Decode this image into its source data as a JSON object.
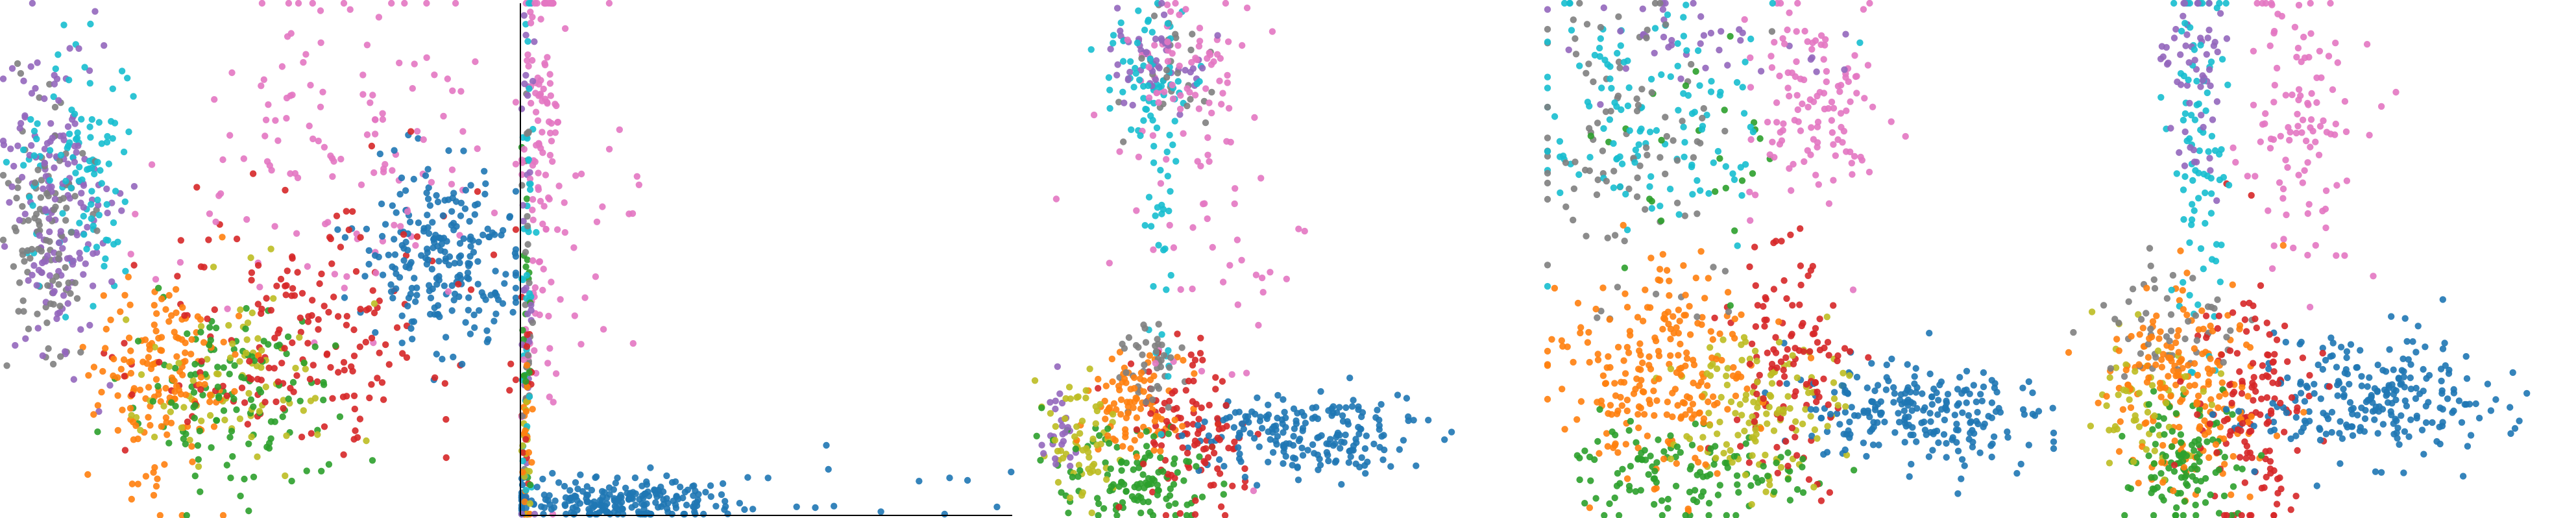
{
  "figure": {
    "background": "#ffffff",
    "panel_count": 5,
    "point_alpha": 0.9
  },
  "palette": {
    "c0": "#1f77b4",
    "c1": "#ff7f0e",
    "c2": "#2ca02c",
    "c3": "#d62728",
    "c4": "#9467bd",
    "c5": "#e377c2",
    "c6": "#7f7f7f",
    "c7": "#bcbd22",
    "c8": "#17becf"
  },
  "chart_data": [
    {
      "type": "scatter",
      "title": "",
      "xlabel": "",
      "ylabel": "",
      "show_axes": false,
      "grid": false,
      "xlim": [
        0,
        100
      ],
      "ylim": [
        0,
        100
      ],
      "clusters": [
        {
          "color": "c0",
          "n": 230,
          "center": [
            86,
            50
          ],
          "spread": [
            8,
            9
          ]
        },
        {
          "color": "c4",
          "n": 170,
          "center": [
            10,
            62
          ],
          "spread": [
            5,
            16
          ]
        },
        {
          "color": "c8",
          "n": 110,
          "center": [
            15,
            68
          ],
          "spread": [
            5,
            12
          ]
        },
        {
          "color": "c6",
          "n": 110,
          "center": [
            9,
            55
          ],
          "spread": [
            4,
            12
          ]
        },
        {
          "color": "c5",
          "n": 130,
          "center": [
            64,
            70
          ],
          "spread": [
            16,
            16
          ]
        },
        {
          "color": "c1",
          "n": 160,
          "center": [
            31,
            28
          ],
          "spread": [
            7,
            10
          ]
        },
        {
          "color": "c2",
          "n": 130,
          "center": [
            43,
            23
          ],
          "spread": [
            11,
            10
          ]
        },
        {
          "color": "c7",
          "n": 80,
          "center": [
            45,
            28
          ],
          "spread": [
            11,
            9
          ]
        },
        {
          "color": "c3",
          "n": 190,
          "center": [
            59,
            36
          ],
          "spread": [
            17,
            12
          ]
        }
      ]
    },
    {
      "type": "scatter",
      "title": "",
      "xlabel": "",
      "ylabel": "",
      "show_axes": true,
      "axes": "left,bottom",
      "grid": false,
      "xlim": [
        0,
        100
      ],
      "ylim": [
        0,
        100
      ],
      "clusters": [
        {
          "color": "c5",
          "n": 110,
          "center": [
            4,
            70
          ],
          "spread": [
            2,
            25
          ]
        },
        {
          "color": "c5",
          "n": 25,
          "center": [
            12,
            60
          ],
          "spread": [
            8,
            25
          ]
        },
        {
          "color": "c8",
          "n": 40,
          "center": [
            1,
            50
          ],
          "spread": [
            0.6,
            30
          ]
        },
        {
          "color": "c4",
          "n": 30,
          "center": [
            1,
            55
          ],
          "spread": [
            0.6,
            28
          ]
        },
        {
          "color": "c6",
          "n": 25,
          "center": [
            1,
            40
          ],
          "spread": [
            0.6,
            25
          ]
        },
        {
          "color": "c2",
          "n": 20,
          "center": [
            1,
            30
          ],
          "spread": [
            0.6,
            20
          ]
        },
        {
          "color": "c3",
          "n": 20,
          "center": [
            1,
            25
          ],
          "spread": [
            0.6,
            20
          ]
        },
        {
          "color": "c1",
          "n": 25,
          "center": [
            1,
            15
          ],
          "spread": [
            0.6,
            12
          ]
        },
        {
          "color": "c7",
          "n": 15,
          "center": [
            1,
            12
          ],
          "spread": [
            0.6,
            10
          ]
        },
        {
          "color": "c0",
          "n": 230,
          "center": [
            18,
            2.5
          ],
          "spread": [
            13,
            2.2
          ]
        },
        {
          "color": "c0",
          "n": 12,
          "center": [
            60,
            4
          ],
          "spread": [
            20,
            3
          ]
        }
      ]
    },
    {
      "type": "scatter",
      "title": "",
      "xlabel": "",
      "ylabel": "",
      "show_axes": false,
      "grid": false,
      "xlim": [
        0,
        100
      ],
      "ylim": [
        0,
        100
      ],
      "clusters": [
        {
          "color": "c5",
          "n": 60,
          "center": [
            30,
            88
          ],
          "spread": [
            6,
            6
          ]
        },
        {
          "color": "c8",
          "n": 60,
          "center": [
            23,
            85
          ],
          "spread": [
            5,
            7
          ]
        },
        {
          "color": "c4",
          "n": 50,
          "center": [
            24,
            90
          ],
          "spread": [
            5,
            5
          ]
        },
        {
          "color": "c6",
          "n": 30,
          "center": [
            25,
            87
          ],
          "spread": [
            5,
            6
          ]
        },
        {
          "color": "c5",
          "n": 55,
          "center": [
            35,
            55
          ],
          "spread": [
            10,
            18
          ]
        },
        {
          "color": "c8",
          "n": 35,
          "center": [
            25,
            55
          ],
          "spread": [
            2,
            14
          ]
        },
        {
          "color": "c6",
          "n": 40,
          "center": [
            22,
            30
          ],
          "spread": [
            3,
            5
          ]
        },
        {
          "color": "c1",
          "n": 90,
          "center": [
            20,
            22
          ],
          "spread": [
            5,
            5
          ]
        },
        {
          "color": "c3",
          "n": 110,
          "center": [
            30,
            15
          ],
          "spread": [
            6,
            9
          ]
        },
        {
          "color": "c2",
          "n": 120,
          "center": [
            20,
            8
          ],
          "spread": [
            7,
            5
          ]
        },
        {
          "color": "c7",
          "n": 60,
          "center": [
            10,
            14
          ],
          "spread": [
            4,
            7
          ]
        },
        {
          "color": "c4",
          "n": 25,
          "center": [
            5,
            17
          ],
          "spread": [
            2,
            5
          ]
        },
        {
          "color": "c0",
          "n": 200,
          "center": [
            52,
            16
          ],
          "spread": [
            12,
            4
          ]
        }
      ]
    },
    {
      "type": "scatter",
      "title": "",
      "xlabel": "",
      "ylabel": "",
      "show_axes": false,
      "grid": false,
      "xlim": [
        0,
        100
      ],
      "ylim": [
        0,
        100
      ],
      "clusters": [
        {
          "color": "c5",
          "n": 120,
          "center": [
            52,
            82
          ],
          "spread": [
            7,
            12
          ]
        },
        {
          "color": "c8",
          "n": 130,
          "center": [
            20,
            78
          ],
          "spread": [
            12,
            12
          ]
        },
        {
          "color": "c6",
          "n": 100,
          "center": [
            15,
            70
          ],
          "spread": [
            10,
            15
          ]
        },
        {
          "color": "c4",
          "n": 40,
          "center": [
            25,
            92
          ],
          "spread": [
            15,
            5
          ]
        },
        {
          "color": "c2",
          "n": 25,
          "center": [
            33,
            72
          ],
          "spread": [
            8,
            12
          ]
        },
        {
          "color": "c1",
          "n": 230,
          "center": [
            22,
            28
          ],
          "spread": [
            10,
            10
          ]
        },
        {
          "color": "c7",
          "n": 130,
          "center": [
            42,
            22
          ],
          "spread": [
            8,
            8
          ]
        },
        {
          "color": "c2",
          "n": 120,
          "center": [
            25,
            8
          ],
          "spread": [
            12,
            5
          ]
        },
        {
          "color": "c3",
          "n": 120,
          "center": [
            48,
            30
          ],
          "spread": [
            6,
            12
          ]
        },
        {
          "color": "c0",
          "n": 230,
          "center": [
            74,
            20
          ],
          "spread": [
            12,
            5
          ]
        }
      ]
    },
    {
      "type": "scatter",
      "title": "",
      "xlabel": "",
      "ylabel": "",
      "show_axes": false,
      "grid": false,
      "xlim": [
        0,
        100
      ],
      "ylim": [
        0,
        100
      ],
      "clusters": [
        {
          "color": "c8",
          "n": 90,
          "center": [
            27,
            70
          ],
          "spread": [
            3,
            18
          ]
        },
        {
          "color": "c4",
          "n": 60,
          "center": [
            26,
            88
          ],
          "spread": [
            3,
            10
          ]
        },
        {
          "color": "c5",
          "n": 110,
          "center": [
            47,
            74
          ],
          "spread": [
            6,
            14
          ]
        },
        {
          "color": "c6",
          "n": 50,
          "center": [
            20,
            37
          ],
          "spread": [
            6,
            7
          ]
        },
        {
          "color": "c1",
          "n": 190,
          "center": [
            25,
            25
          ],
          "spread": [
            8,
            10
          ]
        },
        {
          "color": "c3",
          "n": 140,
          "center": [
            38,
            21
          ],
          "spread": [
            6,
            11
          ]
        },
        {
          "color": "c2",
          "n": 110,
          "center": [
            25,
            10
          ],
          "spread": [
            6,
            6
          ]
        },
        {
          "color": "c7",
          "n": 60,
          "center": [
            17,
            20
          ],
          "spread": [
            5,
            8
          ]
        },
        {
          "color": "c0",
          "n": 240,
          "center": [
            60,
            23
          ],
          "spread": [
            12,
            6
          ]
        }
      ]
    }
  ]
}
